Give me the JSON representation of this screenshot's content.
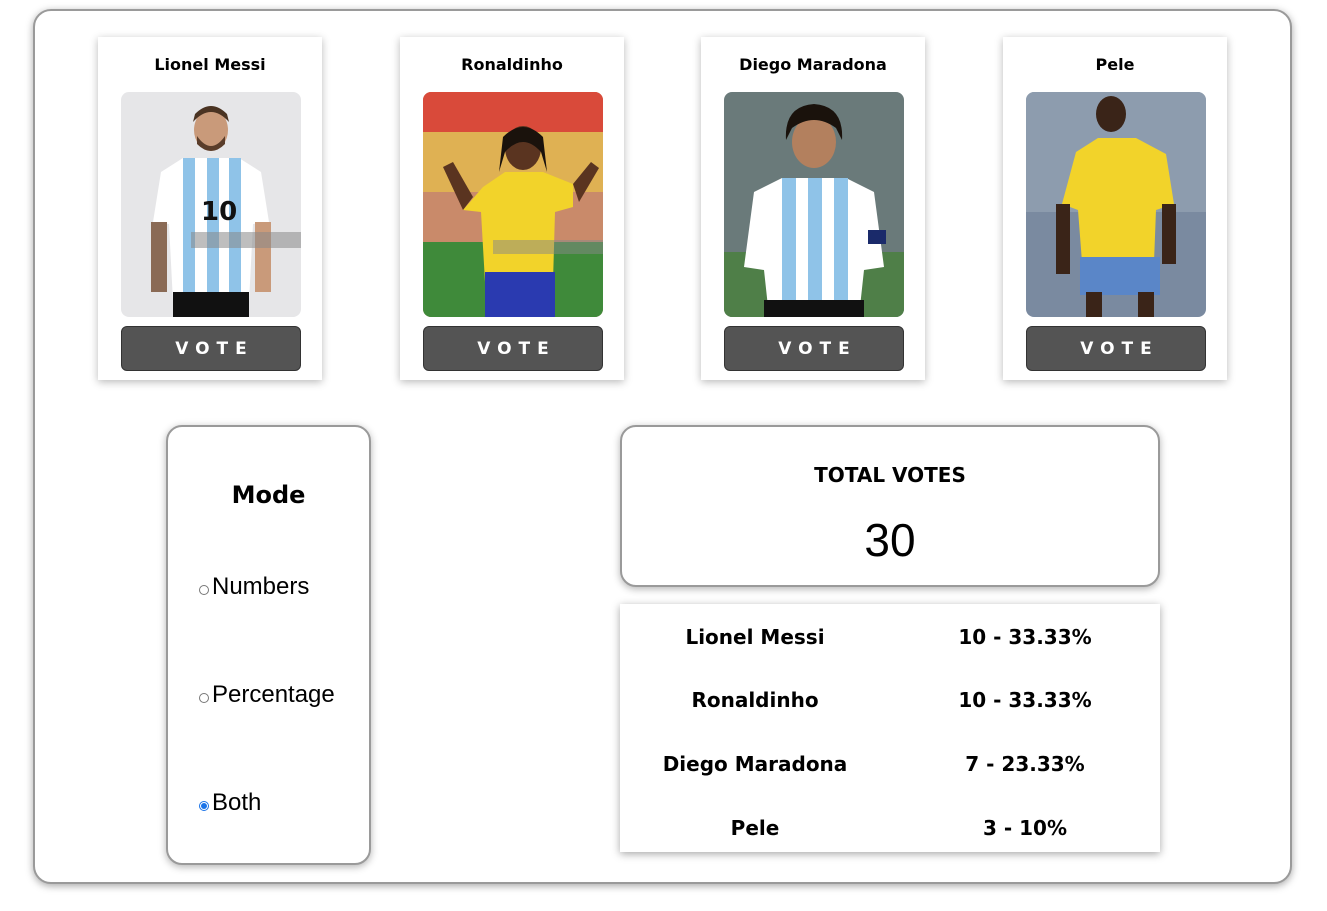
{
  "candidates": [
    {
      "name": "Lionel Messi",
      "vote_label": "VOTE",
      "photo": "messi-photo",
      "jersey": "argentina-stripes"
    },
    {
      "name": "Ronaldinho",
      "vote_label": "VOTE",
      "photo": "ronaldinho-photo",
      "jersey": "brazil-yellow"
    },
    {
      "name": "Diego Maradona",
      "vote_label": "VOTE",
      "photo": "maradona-photo",
      "jersey": "argentina-stripes"
    },
    {
      "name": "Pele",
      "vote_label": "VOTE",
      "photo": "pele-photo",
      "jersey": "brazil-yellow"
    }
  ],
  "mode": {
    "title": "Mode",
    "options": [
      {
        "label": "Numbers",
        "checked": false
      },
      {
        "label": "Percentage",
        "checked": false
      },
      {
        "label": "Both",
        "checked": true
      }
    ]
  },
  "total": {
    "title": "TOTAL VOTES",
    "value": "30"
  },
  "results": [
    {
      "name": "Lionel Messi",
      "value": "10 - 33.33%"
    },
    {
      "name": "Ronaldinho",
      "value": "10 - 33.33%"
    },
    {
      "name": "Diego Maradona",
      "value": "7 - 23.33%"
    },
    {
      "name": "Pele",
      "value": "3 - 10%"
    }
  ],
  "colors": {
    "button": "#545454",
    "radio_checked": "#1a73e8",
    "argentina_blue": "#8fc3e8",
    "brazil_yellow": "#f2d32a"
  }
}
